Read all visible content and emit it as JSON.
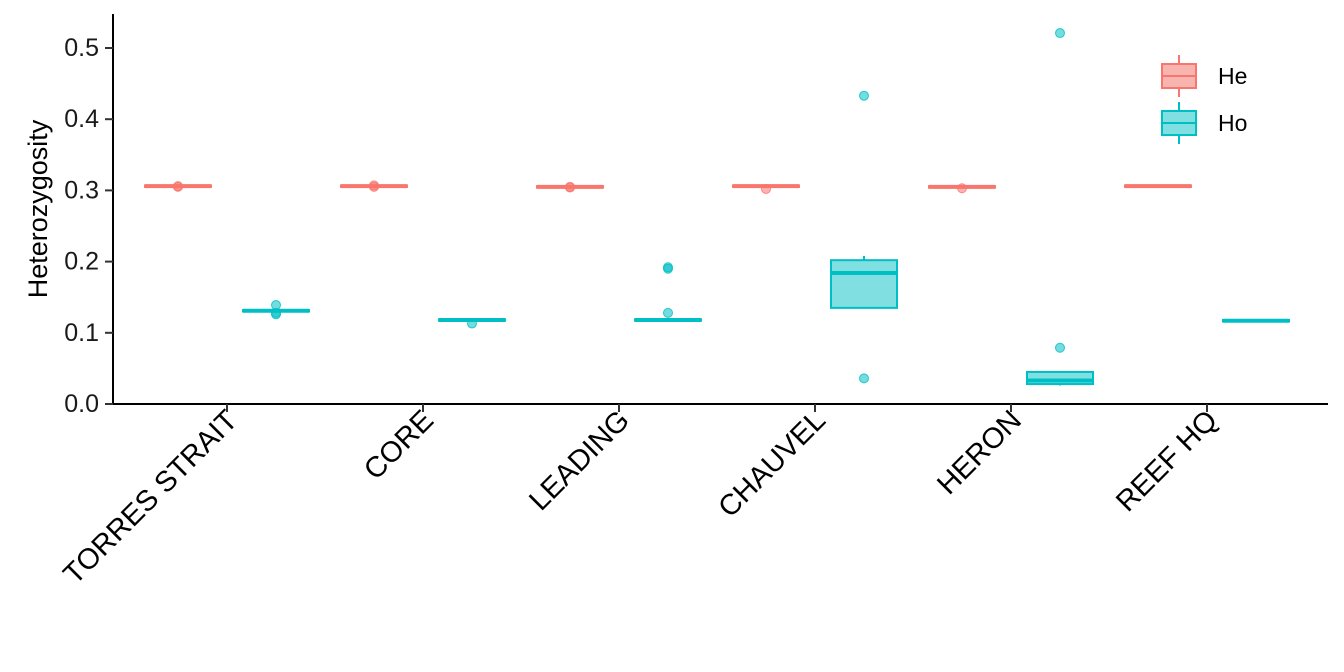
{
  "chart_data": {
    "type": "boxplot",
    "title": "",
    "xlabel": "",
    "ylabel": "Heterozygosity",
    "ylim": [
      0,
      0.55
    ],
    "yticks": [
      "0.0",
      "0.1",
      "0.2",
      "0.3",
      "0.4",
      "0.5"
    ],
    "ytick_values": [
      0,
      0.1,
      0.2,
      0.3,
      0.4,
      0.5
    ],
    "categories": [
      "TORRES STRAIT",
      "CORE",
      "LEADING",
      "CHAUVEL",
      "HERON",
      "REEF HQ"
    ],
    "legend": {
      "position": "top-right",
      "entries": [
        "He",
        "Ho"
      ]
    },
    "series": [
      {
        "name": "He",
        "color": "#F8766D",
        "fill": "#F8B4AE",
        "boxes": [
          {
            "q1": 0.305,
            "median": 0.306,
            "q3": 0.307,
            "whisker_low": 0.305,
            "whisker_high": 0.307,
            "outliers": [
              0.305,
              0.306
            ]
          },
          {
            "q1": 0.305,
            "median": 0.306,
            "q3": 0.307,
            "whisker_low": 0.305,
            "whisker_high": 0.307,
            "outliers": [
              0.305,
              0.307
            ]
          },
          {
            "q1": 0.304,
            "median": 0.305,
            "q3": 0.306,
            "whisker_low": 0.304,
            "whisker_high": 0.306,
            "outliers": [
              0.304,
              0.305
            ]
          },
          {
            "q1": 0.305,
            "median": 0.306,
            "q3": 0.307,
            "whisker_low": 0.305,
            "whisker_high": 0.307,
            "outliers": [
              0.302
            ]
          },
          {
            "q1": 0.304,
            "median": 0.305,
            "q3": 0.306,
            "whisker_low": 0.304,
            "whisker_high": 0.306,
            "outliers": [
              0.303
            ]
          },
          {
            "q1": 0.306,
            "median": 0.306,
            "q3": 0.307,
            "whisker_low": 0.306,
            "whisker_high": 0.307,
            "outliers": []
          }
        ]
      },
      {
        "name": "Ho",
        "color": "#00BFC4",
        "fill": "#7FDFE1",
        "boxes": [
          {
            "q1": 0.13,
            "median": 0.131,
            "q3": 0.132,
            "whisker_low": 0.13,
            "whisker_high": 0.132,
            "outliers": [
              0.139,
              0.126,
              0.128
            ]
          },
          {
            "q1": 0.117,
            "median": 0.118,
            "q3": 0.119,
            "whisker_low": 0.117,
            "whisker_high": 0.119,
            "outliers": [
              0.113
            ]
          },
          {
            "q1": 0.117,
            "median": 0.118,
            "q3": 0.119,
            "whisker_low": 0.117,
            "whisker_high": 0.119,
            "outliers": [
              0.19,
              0.192,
              0.128
            ]
          },
          {
            "q1": 0.135,
            "median": 0.184,
            "q3": 0.202,
            "whisker_low": 0.135,
            "whisker_high": 0.208,
            "outliers": [
              0.433,
              0.036
            ]
          },
          {
            "q1": 0.028,
            "median": 0.033,
            "q3": 0.045,
            "whisker_low": 0.026,
            "whisker_high": 0.045,
            "outliers": [
              0.521,
              0.079
            ]
          },
          {
            "q1": 0.117,
            "median": 0.117,
            "q3": 0.118,
            "whisker_low": 0.117,
            "whisker_high": 0.118,
            "outliers": []
          }
        ]
      }
    ]
  }
}
